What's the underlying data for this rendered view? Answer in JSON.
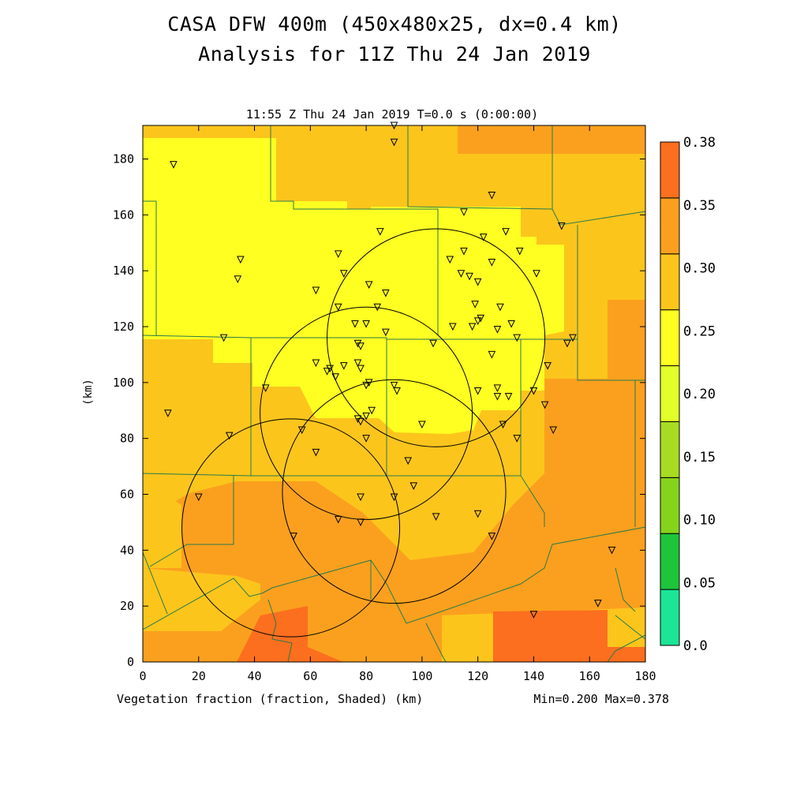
{
  "title_line1": "CASA DFW 400m (450x480x25, dx=0.4 km)",
  "title_line2": "Analysis for 11Z Thu 24 Jan 2019",
  "subtitle": "11:55 Z Thu 24 Jan 2019    T=0.0 s (0:00:00)",
  "xlabel": "Vegetation fraction (fraction, Shaded)  (km)",
  "ylabel": "(km)",
  "minmax": "Min=0.200 Max=0.378",
  "colorbar": {
    "labels": [
      "0.0",
      "0.05",
      "0.10",
      "0.15",
      "0.20",
      "0.25",
      "0.30",
      "0.35",
      "0.38"
    ],
    "colors": [
      "#1be596",
      "#1ec43a",
      "#86d31c",
      "#a8dc22",
      "#e3ff2a",
      "#ffff22",
      "#fcc51c",
      "#fba01e",
      "#fb6f1e"
    ]
  },
  "chart_data": {
    "type": "heatmap",
    "variable": "Vegetation fraction (fraction, Shaded)",
    "xlim": [
      0,
      180
    ],
    "ylim": [
      0,
      192
    ],
    "xticks": [
      0,
      20,
      40,
      60,
      80,
      100,
      120,
      140,
      160,
      180
    ],
    "yticks": [
      0,
      20,
      40,
      60,
      80,
      100,
      120,
      140,
      160,
      180
    ],
    "min": 0.2,
    "max": 0.378,
    "radar_rings": [
      {
        "cx": 105,
        "cy": 116,
        "r": 39
      },
      {
        "cx": 80,
        "cy": 89,
        "r": 38
      },
      {
        "cx": 53,
        "cy": 48,
        "r": 39
      },
      {
        "cx": 90,
        "cy": 61,
        "r": 40
      }
    ],
    "stations": [
      [
        11,
        178
      ],
      [
        90,
        192
      ],
      [
        90,
        186
      ],
      [
        125,
        167
      ],
      [
        115,
        161
      ],
      [
        150,
        156
      ],
      [
        122,
        152
      ],
      [
        130,
        154
      ],
      [
        85,
        154
      ],
      [
        35,
        144
      ],
      [
        70,
        146
      ],
      [
        110,
        144
      ],
      [
        115,
        147
      ],
      [
        125,
        143
      ],
      [
        135,
        147
      ],
      [
        141,
        139
      ],
      [
        34,
        137
      ],
      [
        62,
        133
      ],
      [
        72,
        139
      ],
      [
        81,
        135
      ],
      [
        87,
        132
      ],
      [
        114,
        139
      ],
      [
        117,
        138
      ],
      [
        120,
        136
      ],
      [
        70,
        127
      ],
      [
        84,
        127
      ],
      [
        119,
        128
      ],
      [
        128,
        127
      ],
      [
        76,
        121
      ],
      [
        80,
        121
      ],
      [
        87,
        118
      ],
      [
        111,
        120
      ],
      [
        118,
        120
      ],
      [
        120,
        122
      ],
      [
        121,
        123
      ],
      [
        127,
        119
      ],
      [
        132,
        121
      ],
      [
        134,
        116
      ],
      [
        29,
        116
      ],
      [
        152,
        114
      ],
      [
        154,
        116
      ],
      [
        77,
        114
      ],
      [
        78,
        113
      ],
      [
        104,
        114
      ],
      [
        125,
        110
      ],
      [
        62,
        107
      ],
      [
        66,
        104
      ],
      [
        67,
        105
      ],
      [
        69,
        102
      ],
      [
        72,
        106
      ],
      [
        77,
        107
      ],
      [
        78,
        105
      ],
      [
        145,
        106
      ],
      [
        44,
        98
      ],
      [
        80,
        99
      ],
      [
        81,
        100
      ],
      [
        90,
        99
      ],
      [
        91,
        97
      ],
      [
        120,
        97
      ],
      [
        127,
        98
      ],
      [
        140,
        97
      ],
      [
        127,
        95
      ],
      [
        131,
        95
      ],
      [
        144,
        92
      ],
      [
        9,
        89
      ],
      [
        77,
        87
      ],
      [
        78,
        86
      ],
      [
        80,
        88
      ],
      [
        82,
        90
      ],
      [
        100,
        85
      ],
      [
        129,
        85
      ],
      [
        147,
        83
      ],
      [
        31,
        81
      ],
      [
        57,
        83
      ],
      [
        80,
        80
      ],
      [
        134,
        80
      ],
      [
        62,
        75
      ],
      [
        95,
        72
      ],
      [
        20,
        59
      ],
      [
        78,
        59
      ],
      [
        90,
        59
      ],
      [
        97,
        63
      ],
      [
        120,
        53
      ],
      [
        105,
        52
      ],
      [
        70,
        51
      ],
      [
        78,
        50
      ],
      [
        125,
        45
      ],
      [
        54,
        45
      ],
      [
        168,
        40
      ],
      [
        140,
        17
      ],
      [
        163,
        21
      ]
    ]
  }
}
